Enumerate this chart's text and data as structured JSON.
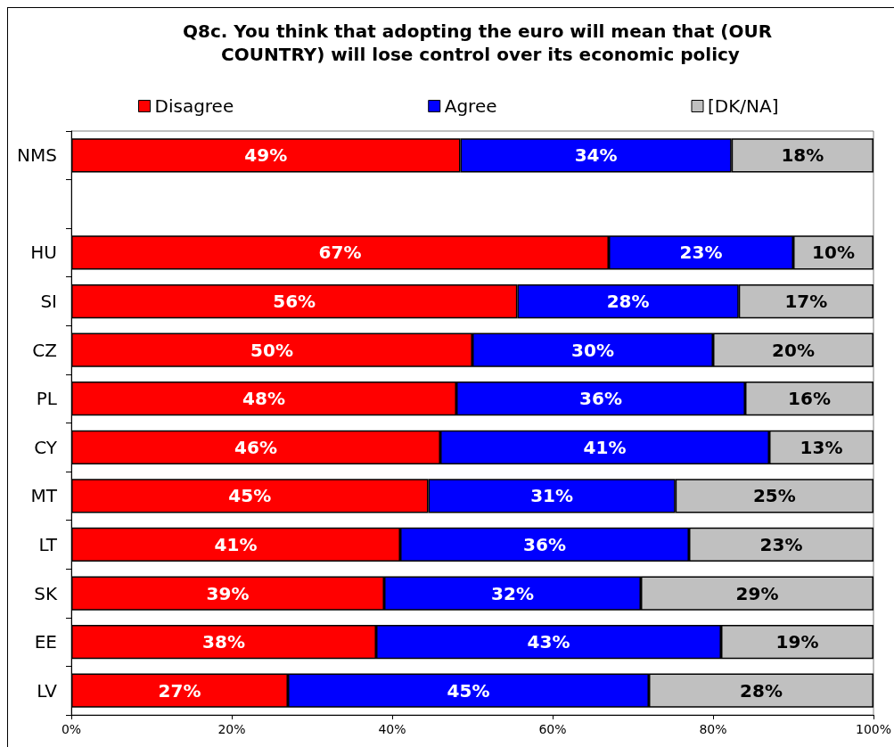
{
  "chart_data": {
    "type": "bar",
    "orientation": "horizontal",
    "stacked": true,
    "title": "Q8c. You think that adopting the euro will mean that (OUR COUNTRY) will lose control over its economic policy",
    "categories": [
      "NMS",
      null,
      "HU",
      "SI",
      "CZ",
      "PL",
      "CY",
      "MT",
      "LT",
      "SK",
      "EE",
      "LV"
    ],
    "series": [
      {
        "name": "Disagree",
        "color": "#ff0000",
        "values": [
          48.5,
          null,
          67,
          55.6,
          50,
          48,
          46,
          44.5,
          41,
          39,
          38,
          27
        ],
        "value_labels": [
          "49%",
          null,
          "67%",
          "56%",
          "50%",
          "48%",
          "46%",
          "45%",
          "41%",
          "39%",
          "38%",
          "27%"
        ]
      },
      {
        "name": "Agree",
        "color": "#0000ff",
        "values": [
          33.8,
          null,
          23,
          27.6,
          30,
          36,
          41,
          30.8,
          36,
          32,
          43,
          45
        ],
        "value_labels": [
          "34%",
          null,
          "23%",
          "28%",
          "30%",
          "36%",
          "41%",
          "31%",
          "36%",
          "32%",
          "43%",
          "45%"
        ]
      },
      {
        "name": "[DK/NA]",
        "color": "#c0c0c0",
        "values": [
          17.7,
          null,
          10,
          16.8,
          20,
          16,
          13,
          24.7,
          23,
          29,
          19,
          28
        ],
        "value_labels": [
          "18%",
          null,
          "10%",
          "17%",
          "20%",
          "16%",
          "13%",
          "25%",
          "23%",
          "29%",
          "19%",
          "28%"
        ]
      }
    ],
    "xlim": [
      0,
      100
    ],
    "xticks": [
      {
        "value": 0,
        "label": "0%"
      },
      {
        "value": 20,
        "label": "20%"
      },
      {
        "value": 40,
        "label": "40%"
      },
      {
        "value": 60,
        "label": "60%"
      },
      {
        "value": 80,
        "label": "80%"
      },
      {
        "value": 100,
        "label": "100%"
      }
    ],
    "legend": "top"
  }
}
